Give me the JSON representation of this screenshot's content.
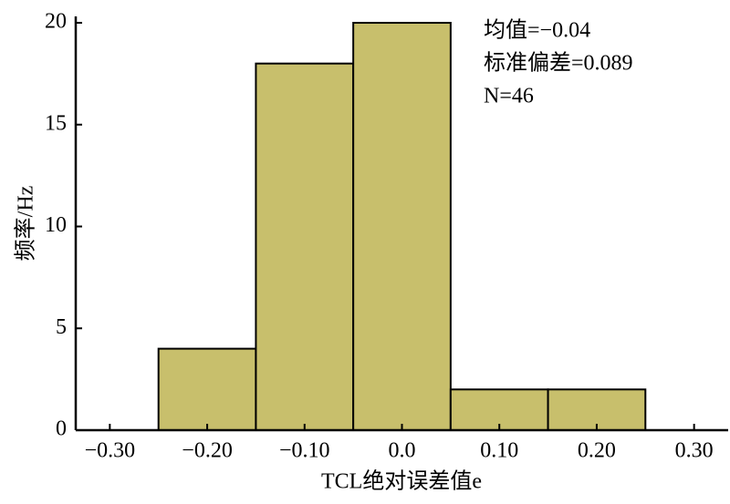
{
  "chart_data": {
    "type": "histogram",
    "x_label": "TCL绝对误差值e",
    "y_label": "频率/Hz",
    "annotations": [
      "均值=−0.04",
      "标准偏差=0.089",
      "N=46"
    ],
    "bins": [
      -0.25,
      -0.15,
      -0.05,
      0.05,
      0.15,
      0.25
    ],
    "values": [
      4,
      18,
      20,
      2,
      2
    ],
    "color": "#c8bf6c",
    "xlim": [
      -0.335,
      0.335
    ],
    "xticks": [
      {
        "value": -0.3,
        "label": "−0.30"
      },
      {
        "value": -0.2,
        "label": "−0.20"
      },
      {
        "value": -0.1,
        "label": "−0.10"
      },
      {
        "value": 0,
        "label": "0.0"
      },
      {
        "value": 0.1,
        "label": "0.10"
      },
      {
        "value": 0.2,
        "label": "0.20"
      },
      {
        "value": 0.3,
        "label": "0.30"
      }
    ],
    "ylim": [
      0,
      20
    ],
    "yticks": [
      0,
      5,
      10,
      15,
      20
    ]
  }
}
